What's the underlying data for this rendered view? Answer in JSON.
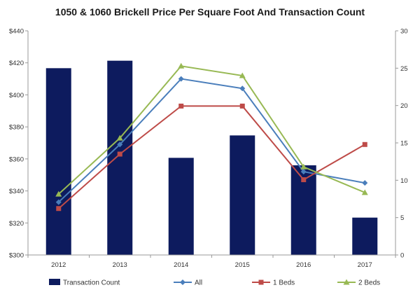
{
  "chart_data": {
    "type": "bar+line",
    "title": "1050 & 1060 Brickell Price Per Square Foot And Transaction Count",
    "categories": [
      "2012",
      "2013",
      "2014",
      "2015",
      "2016",
      "2017"
    ],
    "y_left": {
      "range": [
        300,
        440
      ],
      "ticks": [
        300,
        320,
        340,
        360,
        380,
        400,
        420,
        440
      ],
      "tick_labels": [
        "$300",
        "$320",
        "$340",
        "$360",
        "$380",
        "$400",
        "$420",
        "$440"
      ]
    },
    "y_right": {
      "range": [
        0,
        30
      ],
      "ticks": [
        0,
        5,
        10,
        15,
        20,
        25,
        30
      ],
      "tick_labels": [
        "0",
        "5",
        "10",
        "15",
        "20",
        "25",
        "30"
      ]
    },
    "bars": {
      "name": "Transaction Count",
      "axis": "right",
      "color": "#0d1b5e",
      "values": [
        25,
        26,
        13,
        16,
        12,
        5
      ]
    },
    "series": [
      {
        "name": "All",
        "axis": "left",
        "color": "#4a7ebb",
        "marker": "diamond",
        "values": [
          333,
          369,
          410,
          404,
          352,
          345
        ]
      },
      {
        "name": "1 Beds",
        "axis": "left",
        "color": "#be4b48",
        "marker": "square",
        "values": [
          329,
          363,
          393,
          393,
          347,
          369
        ]
      },
      {
        "name": "2 Beds",
        "axis": "left",
        "color": "#98b954",
        "marker": "triangle",
        "values": [
          338,
          373,
          418,
          412,
          355,
          339
        ]
      }
    ],
    "grid": false,
    "legend_position": "bottom"
  }
}
